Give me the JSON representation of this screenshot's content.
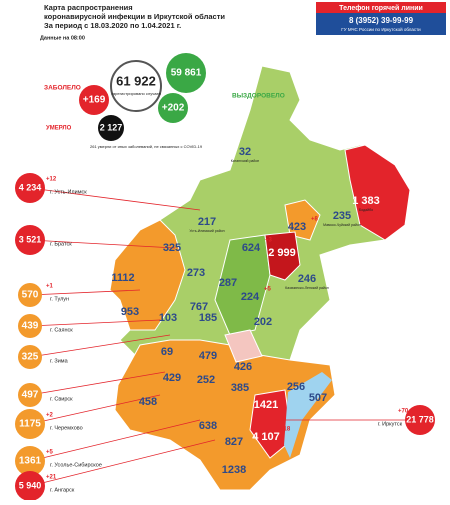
{
  "header": {
    "title_lines": [
      "Карта распространения",
      "коронавирусной инфекции в Иркутской области",
      "За период с 18.03.2020 по 1.04.2021 г."
    ],
    "note": "Данные на 08:00"
  },
  "hotline": {
    "title": "Телефон горячей линии",
    "phone": "8 (3952) 39-99-99",
    "org": "ГУ МЧС России по Иркутской области"
  },
  "stats": {
    "sick_label": "ЗАБОЛЕЛО",
    "sick_delta": "+169",
    "total": "61 922",
    "total_caption": "зарегистрировано случаев",
    "recovered": "59 861",
    "recovered_label": "ВЫЗДОРОВЕЛО",
    "recovered_delta": "+202",
    "died_label": "УМЕРЛО",
    "died": "2 127",
    "died_note": "261 умерли от иных заболеваний, не связанных с COVID-19"
  },
  "cities": [
    {
      "value": "4 234",
      "delta": "+12",
      "name": "г. Усть-Илимск",
      "color": "#e3242b"
    },
    {
      "value": "3 521",
      "name": "г. Братск",
      "color": "#e3242b"
    },
    {
      "value": "570",
      "delta": "+1",
      "name": "г. Тулун",
      "color": "#f39a2c"
    },
    {
      "value": "439",
      "name": "г. Саянск",
      "color": "#f39a2c"
    },
    {
      "value": "325",
      "name": "г. Зима",
      "color": "#f39a2c"
    },
    {
      "value": "497",
      "name": "г. Свирск",
      "color": "#f39a2c"
    },
    {
      "value": "1175",
      "delta": "+2",
      "name": "г. Черемхово",
      "color": "#f39a2c"
    },
    {
      "value": "1361",
      "delta": "+5",
      "name": "г. Усолье-Сибирское",
      "color": "#f39a2c"
    },
    {
      "value": "5 940",
      "delta": "+21",
      "name": "г. Ангарск",
      "color": "#e3242b"
    },
    {
      "value": "21 778",
      "delta": "+70",
      "name": "г. Иркутск",
      "color": "#e3242b"
    }
  ],
  "regions": [
    {
      "value": "32",
      "name": "Катангский район"
    },
    {
      "value": "1 383",
      "name": "Бодайбо"
    },
    {
      "value": "217",
      "name": "Усть-Илимский район"
    },
    {
      "value": "325"
    },
    {
      "value": "235",
      "name": "Мамско-Чуйский район"
    },
    {
      "value": "423",
      "delta": "+8"
    },
    {
      "value": "624",
      "delta": "+3"
    },
    {
      "value": "2 999"
    },
    {
      "value": "1112"
    },
    {
      "value": "273"
    },
    {
      "value": "246",
      "name": "Казачинско-Ленский район"
    },
    {
      "value": "953"
    },
    {
      "value": "287"
    },
    {
      "value": "224",
      "delta": "+5"
    },
    {
      "value": "103"
    },
    {
      "value": "767"
    },
    {
      "value": "185"
    },
    {
      "value": "202"
    },
    {
      "value": "69"
    },
    {
      "value": "479"
    },
    {
      "value": "429"
    },
    {
      "value": "252"
    },
    {
      "value": "426"
    },
    {
      "value": "458"
    },
    {
      "value": "385"
    },
    {
      "value": "256"
    },
    {
      "value": "1421"
    },
    {
      "value": "507"
    },
    {
      "value": "638"
    },
    {
      "value": "827"
    },
    {
      "value": "4 107",
      "delta": "+18"
    },
    {
      "value": "1238"
    }
  ]
}
